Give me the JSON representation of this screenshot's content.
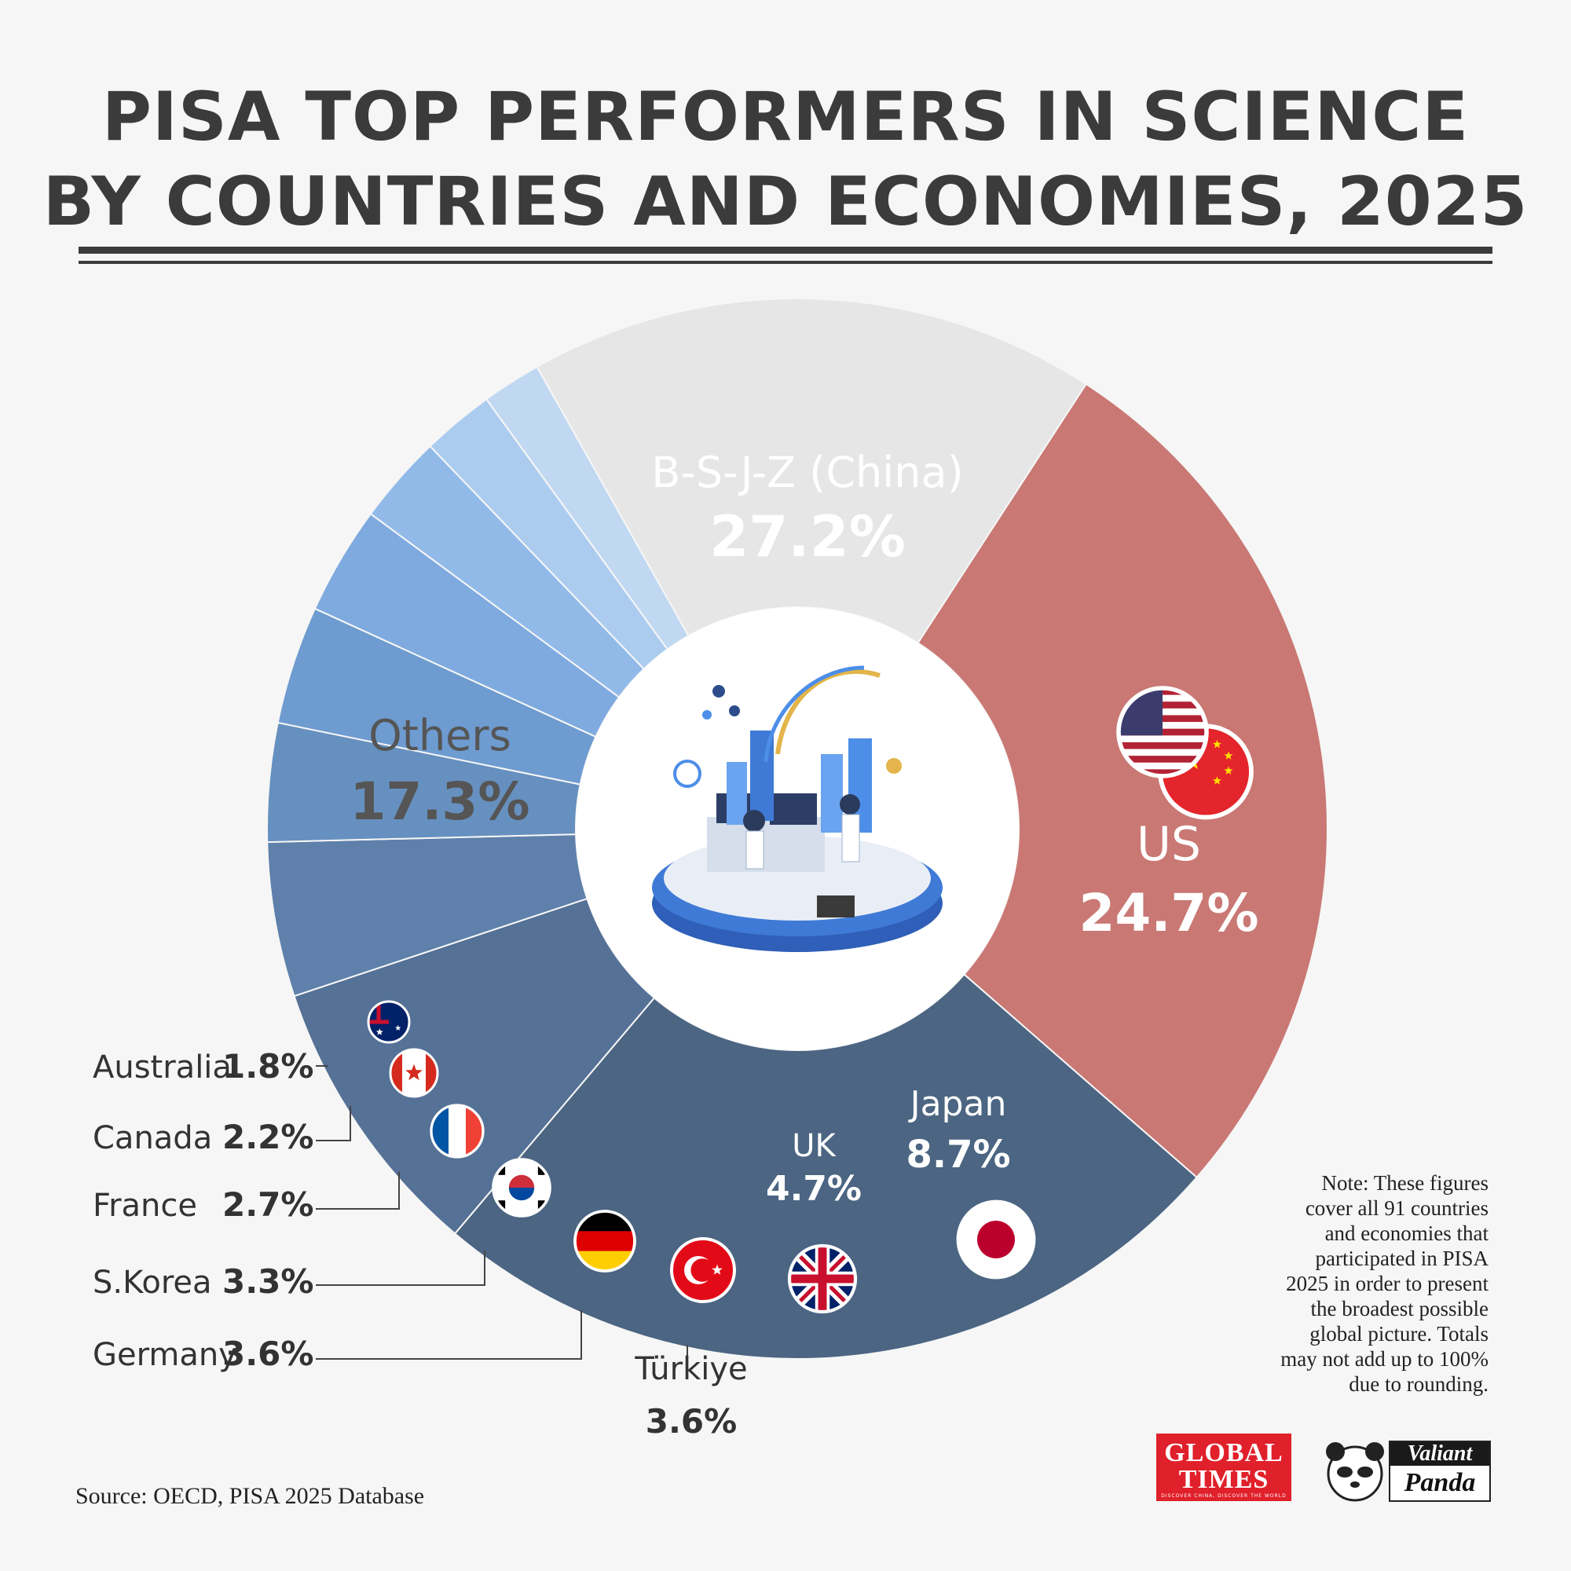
{
  "title_line1": "PISA TOP PERFORMERS IN SCIENCE",
  "title_line2": "BY COUNTRIES AND ECONOMIES, 2025",
  "note": "Note: These figures\ncover all 91 countries\nand economies that\nparticipated in PISA\n2025 in order to present\nthe broadest possible\nglobal picture. Totals\nmay not add up to 100%\ndue to rounding.",
  "source": "Source: OECD, PISA 2025 Database",
  "logos": {
    "global_times_line1": "GLOBAL",
    "global_times_line2": "TIMES",
    "global_times_tagline": "DISCOVER CHINA, DISCOVER THE WORLD",
    "valiant": "Valiant",
    "panda": "Panda"
  },
  "chart_data": {
    "type": "pie",
    "style": "donut",
    "center_icon": "science-lab-illustration",
    "slices": [
      {
        "name": "B-S-J-Z (China)",
        "value": 27.2,
        "label": "27.2%",
        "color": "#c97874",
        "flag": "china-flag-icon"
      },
      {
        "name": "US",
        "value": 24.7,
        "label": "24.7%",
        "color": "#4b6582",
        "flag": "us-flag-icon"
      },
      {
        "name": "Japan",
        "value": 8.7,
        "label": "8.7%",
        "color": "#557196",
        "flag": "japan-flag-icon"
      },
      {
        "name": "UK",
        "value": 4.7,
        "label": "4.7%",
        "color": "#5e80ab",
        "flag": "uk-flag-icon"
      },
      {
        "name": "Türkiye",
        "value": 3.6,
        "label": "3.6%",
        "color": "#6690bf",
        "flag": "turkey-flag-icon"
      },
      {
        "name": "Germany",
        "value": 3.6,
        "label": "3.6%",
        "color": "#6e9bd0",
        "flag": "germany-flag-icon"
      },
      {
        "name": "S.Korea",
        "value": 3.3,
        "label": "3.3%",
        "color": "#7eaadf",
        "flag": "south-korea-flag-icon"
      },
      {
        "name": "France",
        "value": 2.7,
        "label": "2.7%",
        "color": "#92bae9",
        "flag": "france-flag-icon"
      },
      {
        "name": "Canada",
        "value": 2.2,
        "label": "2.2%",
        "color": "#acccef",
        "flag": "canada-flag-icon"
      },
      {
        "name": "Australia",
        "value": 1.8,
        "label": "1.8%",
        "color": "#c0d8f2",
        "flag": "australia-flag-icon"
      },
      {
        "name": "Others",
        "value": 17.3,
        "label": "17.3%",
        "color": "#e6e6e6",
        "flag": ""
      }
    ]
  }
}
